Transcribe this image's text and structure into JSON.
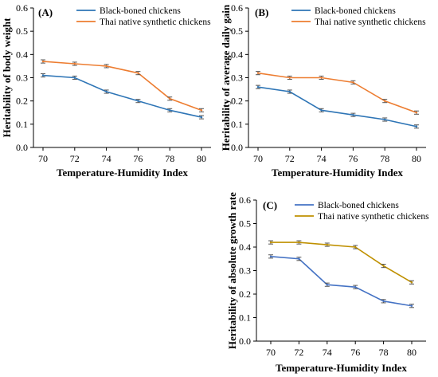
{
  "chart_data": [
    {
      "type": "line",
      "panel_label": "(A)",
      "xlabel": "Temperature-Humidity Index",
      "ylabel": "Heritability of body weight",
      "categories": [
        70,
        72,
        74,
        76,
        78,
        80
      ],
      "ylim": [
        0,
        0.6
      ],
      "yticks": [
        "0.0",
        "0.1",
        "0.2",
        "0.3",
        "0.4",
        "0.5",
        "0.6"
      ],
      "grid": false,
      "legend": "top-right",
      "error_bar": 0.007,
      "series": [
        {
          "name": "Black-boned chickens",
          "color": "#2e75b6",
          "values": [
            0.31,
            0.3,
            0.24,
            0.2,
            0.16,
            0.13
          ]
        },
        {
          "name": "Thai native synthetic chickens",
          "color": "#ed7d31",
          "values": [
            0.37,
            0.36,
            0.35,
            0.32,
            0.21,
            0.16
          ]
        }
      ]
    },
    {
      "type": "line",
      "panel_label": "(B)",
      "xlabel": "Temperature-Humidity Index",
      "ylabel": "Heritability of average daily gain",
      "categories": [
        70,
        72,
        74,
        76,
        78,
        80
      ],
      "ylim": [
        0,
        0.6
      ],
      "yticks": [
        "0.0",
        "0.1",
        "0.2",
        "0.3",
        "0.4",
        "0.5",
        "0.6"
      ],
      "grid": false,
      "legend": "top-right",
      "error_bar": 0.007,
      "series": [
        {
          "name": "Black-boned chickens",
          "color": "#2e75b6",
          "values": [
            0.26,
            0.24,
            0.16,
            0.14,
            0.12,
            0.09
          ]
        },
        {
          "name": "Thai native synthetic chickens",
          "color": "#ed7d31",
          "values": [
            0.32,
            0.3,
            0.3,
            0.28,
            0.2,
            0.15
          ]
        }
      ]
    },
    {
      "type": "line",
      "panel_label": "(C)",
      "xlabel": "Temperature-Humidity Index",
      "ylabel": "Heritability of absolute growth rate",
      "categories": [
        70,
        72,
        74,
        76,
        78,
        80
      ],
      "ylim": [
        0,
        0.6
      ],
      "yticks": [
        "0.0",
        "0.1",
        "0.2",
        "0.3",
        "0.4",
        "0.5",
        "0.6"
      ],
      "grid": false,
      "legend": "top-right",
      "error_bar": 0.007,
      "series": [
        {
          "name": "Black-boned chickens",
          "color": "#4472c4",
          "values": [
            0.36,
            0.35,
            0.24,
            0.23,
            0.17,
            0.15
          ]
        },
        {
          "name": "Thai native synthetic chickens",
          "color": "#bf9000",
          "values": [
            0.42,
            0.42,
            0.41,
            0.4,
            0.32,
            0.25
          ]
        }
      ]
    }
  ]
}
